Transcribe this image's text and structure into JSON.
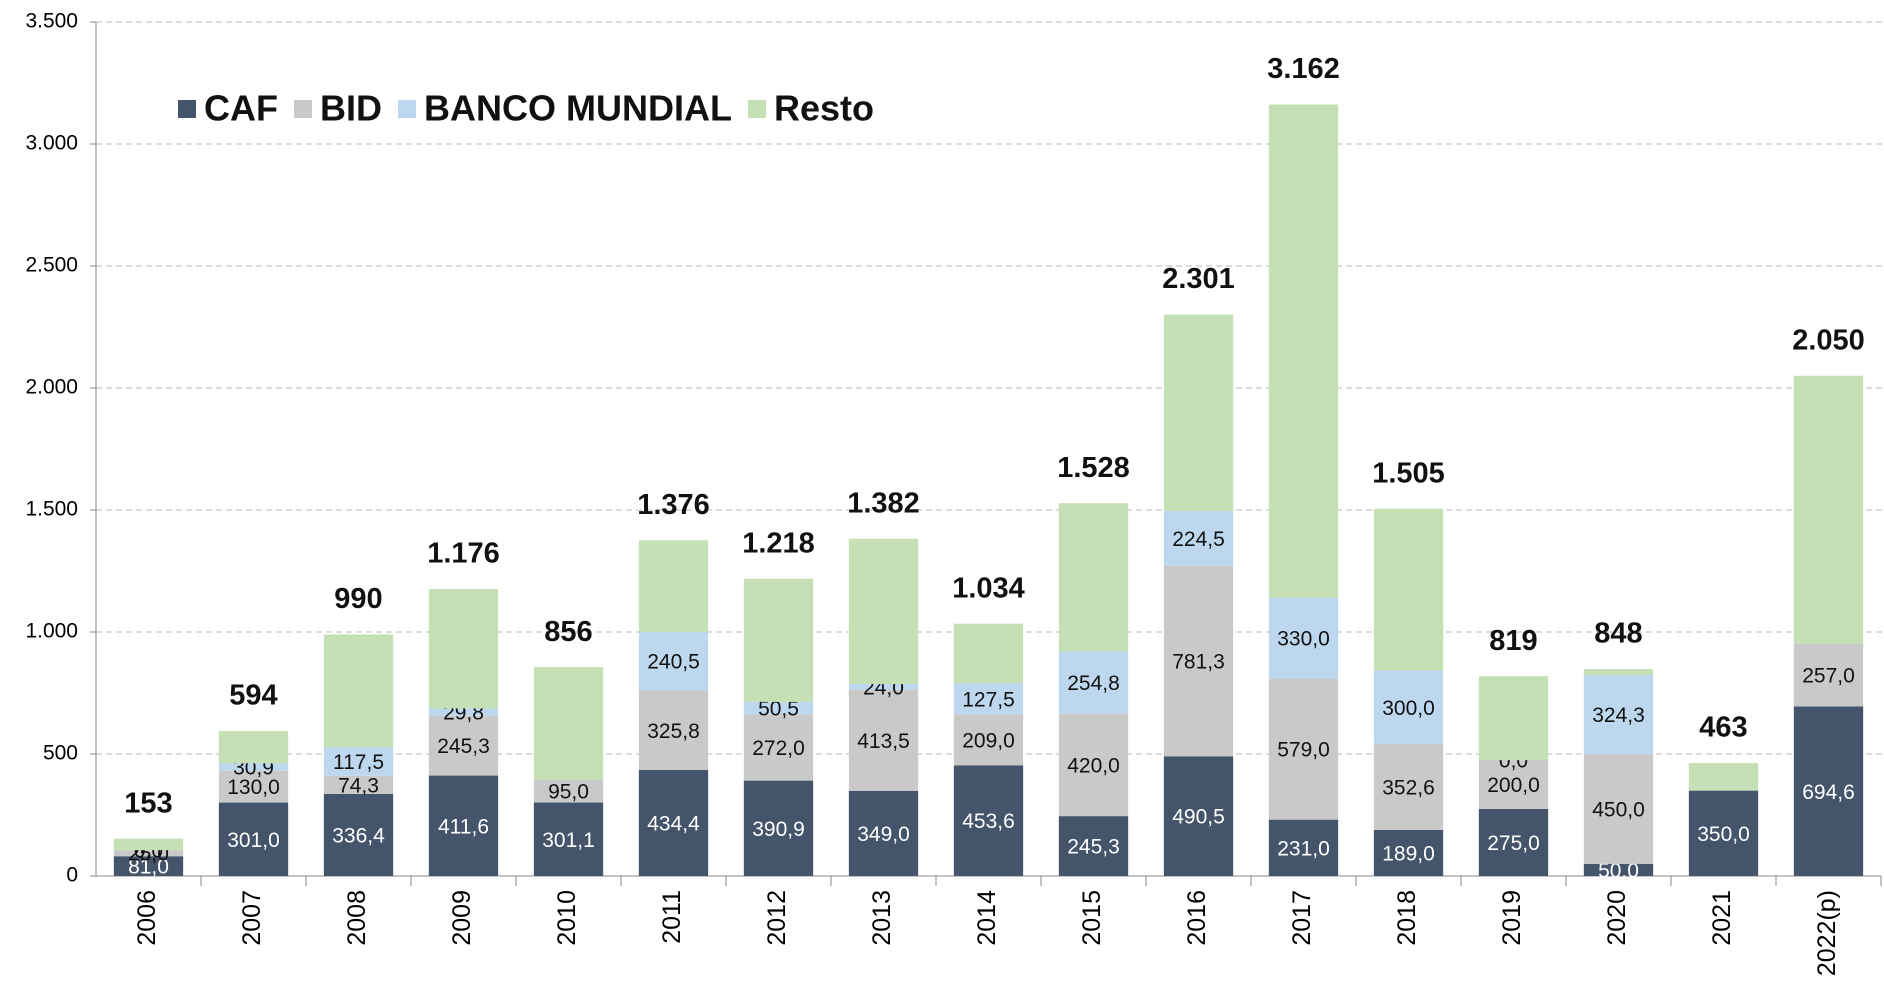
{
  "chart_data": {
    "type": "stacked-bar",
    "categories": [
      "2006",
      "2007",
      "2008",
      "2009",
      "2010",
      "2011",
      "2012",
      "2013",
      "2014",
      "2015",
      "2016",
      "2017",
      "2018",
      "2019",
      "2020",
      "2021",
      "2022(p)"
    ],
    "series": [
      {
        "name": "CAF",
        "color": "#44546a",
        "values": [
          81.0,
          301.0,
          336.4,
          411.6,
          301.1,
          434.4,
          390.9,
          349.0,
          453.6,
          245.3,
          490.5,
          231.0,
          189.0,
          275.0,
          50.0,
          350.0,
          694.6
        ],
        "value_labels": [
          "81,0",
          "301,0",
          "336,4",
          "411,6",
          "301,1",
          "434,4",
          "390,9",
          "349,0",
          "453,6",
          "245,3",
          "490,5",
          "231,0",
          "189,0",
          "275,0",
          "50,0",
          "350,0",
          "694,6"
        ]
      },
      {
        "name": "BID",
        "color": "#c9c9c9",
        "values": [
          25.0,
          130.0,
          74.3,
          245.3,
          95.0,
          325.8,
          272.0,
          413.5,
          209.0,
          420.0,
          781.3,
          579.0,
          352.6,
          200.0,
          450.0,
          null,
          257.0
        ],
        "value_labels": [
          "25,0",
          "130,0",
          "74,3",
          "245,3",
          "95,0",
          "325,8",
          "272,0",
          "413,5",
          "209,0",
          "420,0",
          "781,3",
          "579,0",
          "352,6",
          "200,0",
          "450,0",
          null,
          "257,0"
        ]
      },
      {
        "name": "BANCO MUNDIAL",
        "color": "#bdd7ee",
        "values": [
          0.0,
          30.9,
          117.5,
          29.8,
          null,
          240.5,
          50.5,
          24.0,
          127.5,
          254.8,
          224.5,
          330.0,
          300.0,
          0.0,
          324.3,
          null,
          null
        ],
        "value_labels": [
          "0,0",
          "30,9",
          "117,5",
          "29,8",
          null,
          "240,5",
          "50,5",
          "24,0",
          "127,5",
          "254,8",
          "224,5",
          "330,0",
          "300,0",
          "0,0",
          "324,3",
          null,
          null
        ]
      },
      {
        "name": "Resto",
        "color": "#c5e0b4",
        "values": [
          47.0,
          132.1,
          461.8,
          489.3,
          459.9,
          375.3,
          504.6,
          595.5,
          243.9,
          607.9,
          804.7,
          2022.0,
          663.4,
          344.0,
          23.7,
          113.0,
          1098.4
        ]
      }
    ],
    "totals": {
      "values": [
        153,
        594,
        990,
        1176,
        856,
        1376,
        1218,
        1382,
        1034,
        1528,
        2301,
        3162,
        1505,
        819,
        848,
        463,
        2050
      ],
      "value_labels": [
        "153",
        "594",
        "990",
        "1.176",
        "856",
        "1.376",
        "1.218",
        "1.382",
        "1.034",
        "1.528",
        "2.301",
        "3.162",
        "1.505",
        "819",
        "848",
        "463",
        "2.050"
      ]
    },
    "ylim": [
      0,
      3500
    ],
    "yticks": [
      0,
      500,
      {
        "value": 1000,
        "label": "1.000"
      },
      {
        "value": 1500,
        "label": "1.500"
      },
      {
        "value": 2000,
        "label": "2.000"
      },
      {
        "value": 2500,
        "label": "2.500"
      },
      {
        "value": 3000,
        "label": "3.000"
      },
      {
        "value": 3500,
        "label": "3.500"
      }
    ],
    "grid": true,
    "legend": "top-left"
  }
}
